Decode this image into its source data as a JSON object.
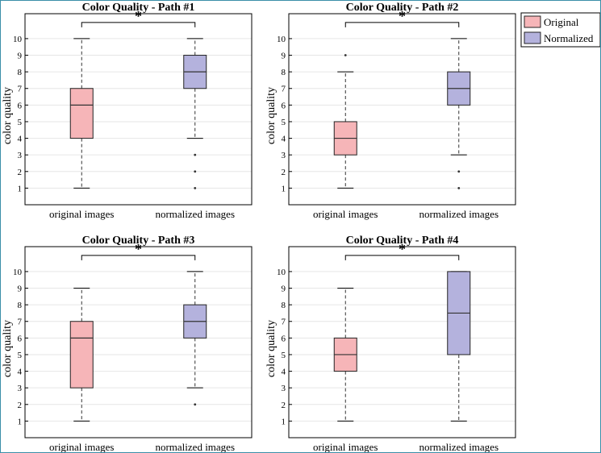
{
  "colors": {
    "original_fill": "#f6b5b8",
    "normalized_fill": "#b4b2dd",
    "median": "#333333",
    "grid": "#e6e6e6",
    "axis": "#000000"
  },
  "legend": {
    "placement": "top-right",
    "items": [
      {
        "label": "Original",
        "color_key": "original_fill"
      },
      {
        "label": "Normalized",
        "color_key": "normalized_fill"
      }
    ]
  },
  "chart_data": [
    {
      "type": "box",
      "title": "Color Quality - Path #1",
      "ylabel": "color quality",
      "categories": [
        "original images",
        "normalized images"
      ],
      "yticks": [
        1,
        2,
        3,
        4,
        5,
        6,
        7,
        8,
        9,
        10
      ],
      "ylim": [
        0,
        11.5
      ],
      "grid": true,
      "significance": "*",
      "series": [
        {
          "name": "Original",
          "whisker_low": 1,
          "q1": 4,
          "median": 6,
          "q3": 7,
          "whisker_high": 10,
          "outliers": []
        },
        {
          "name": "Normalized",
          "whisker_low": 4,
          "q1": 7,
          "median": 8,
          "q3": 9,
          "whisker_high": 10,
          "outliers": [
            3,
            2,
            1
          ]
        }
      ]
    },
    {
      "type": "box",
      "title": "Color Quality - Path #2",
      "ylabel": "color quality",
      "categories": [
        "original images",
        "normalized images"
      ],
      "yticks": [
        1,
        2,
        3,
        4,
        5,
        6,
        7,
        8,
        9,
        10
      ],
      "ylim": [
        0,
        11.5
      ],
      "grid": true,
      "significance": "*",
      "series": [
        {
          "name": "Original",
          "whisker_low": 1,
          "q1": 3,
          "median": 4,
          "q3": 5,
          "whisker_high": 8,
          "outliers": [
            9
          ]
        },
        {
          "name": "Normalized",
          "whisker_low": 3,
          "q1": 6,
          "median": 7,
          "q3": 8,
          "whisker_high": 10,
          "outliers": [
            2,
            1
          ]
        }
      ]
    },
    {
      "type": "box",
      "title": "Color Quality - Path #3",
      "ylabel": "color quality",
      "categories": [
        "original images",
        "normalized images"
      ],
      "yticks": [
        1,
        2,
        3,
        4,
        5,
        6,
        7,
        8,
        9,
        10
      ],
      "ylim": [
        0,
        11.5
      ],
      "grid": true,
      "significance": "*",
      "series": [
        {
          "name": "Original",
          "whisker_low": 1,
          "q1": 3,
          "median": 6,
          "q3": 7,
          "whisker_high": 9,
          "outliers": []
        },
        {
          "name": "Normalized",
          "whisker_low": 3,
          "q1": 6,
          "median": 7,
          "q3": 8,
          "whisker_high": 10,
          "outliers": [
            2
          ]
        }
      ]
    },
    {
      "type": "box",
      "title": "Color Quality - Path #4",
      "ylabel": "color quality",
      "categories": [
        "original images",
        "normalized images"
      ],
      "yticks": [
        1,
        2,
        3,
        4,
        5,
        6,
        7,
        8,
        9,
        10
      ],
      "ylim": [
        0,
        11.5
      ],
      "grid": true,
      "significance": "*",
      "series": [
        {
          "name": "Original",
          "whisker_low": 1,
          "q1": 4,
          "median": 5,
          "q3": 6,
          "whisker_high": 9,
          "outliers": []
        },
        {
          "name": "Normalized",
          "whisker_low": 1,
          "q1": 5,
          "median": 7.5,
          "q3": 10,
          "whisker_high": 10,
          "outliers": []
        }
      ]
    }
  ]
}
